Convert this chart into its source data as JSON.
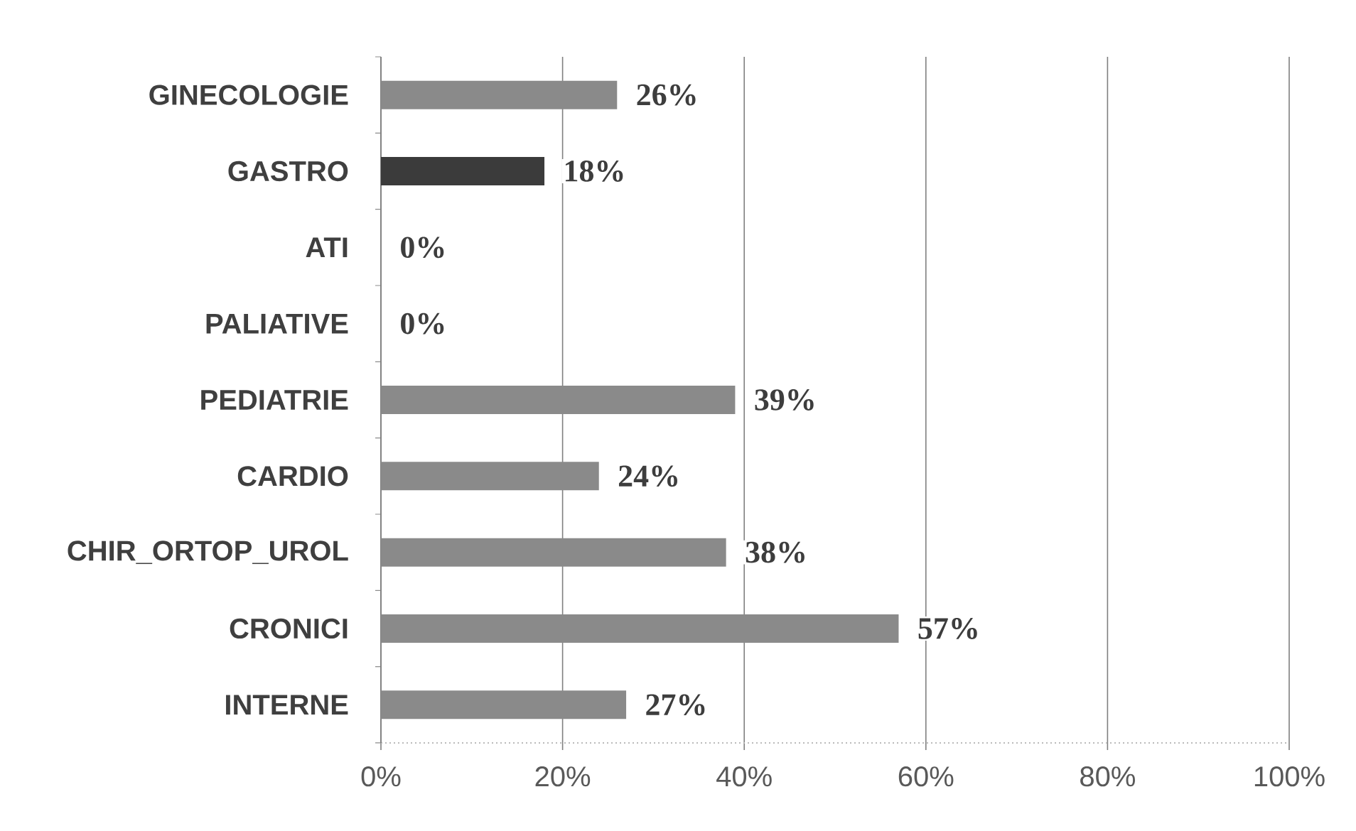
{
  "chart_data": {
    "type": "bar",
    "orientation": "horizontal",
    "categories": [
      "GINECOLOGIE",
      "GASTRO",
      "ATI",
      "PALIATIVE",
      "PEDIATRIE",
      "CARDIO",
      "CHIR_ORTOP_UROL",
      "CRONICI",
      "INTERNE"
    ],
    "values": [
      26,
      18,
      0,
      0,
      39,
      24,
      38,
      57,
      27
    ],
    "colors": [
      "#8a8a8a",
      "#3b3b3b",
      "#8a8a8a",
      "#8a8a8a",
      "#8a8a8a",
      "#8a8a8a",
      "#8a8a8a",
      "#8a8a8a",
      "#8a8a8a"
    ],
    "value_labels": [
      "26%",
      "18%",
      "0%",
      "0%",
      "39%",
      "24%",
      "38%",
      "57%",
      "27%"
    ],
    "xlim": [
      0,
      100
    ],
    "xticks": [
      {
        "value": 0,
        "label": "0%"
      },
      {
        "value": 20,
        "label": "20%"
      },
      {
        "value": 40,
        "label": "40%"
      },
      {
        "value": 60,
        "label": "60%"
      },
      {
        "value": 80,
        "label": "80%"
      },
      {
        "value": 100,
        "label": "100%"
      }
    ],
    "grid": "x"
  }
}
